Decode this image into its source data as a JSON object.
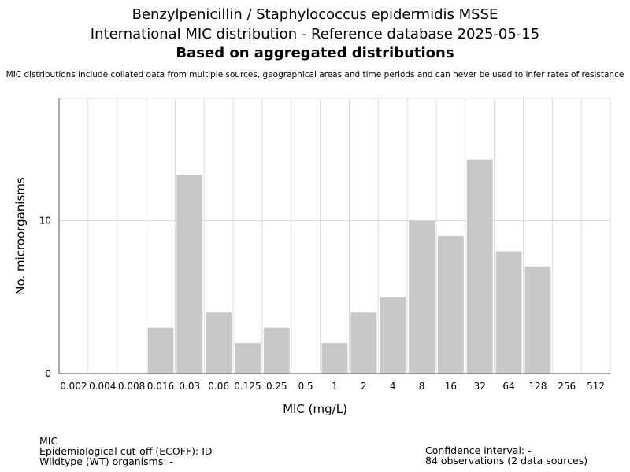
{
  "header": {
    "title_line1": "Benzylpenicillin / Staphylococcus epidermidis MSSE",
    "title_line2": "International MIC distribution - Reference database 2025-05-15",
    "title_line3": "Based on aggregated distributions",
    "subtitle": "MIC distributions include collated data from multiple sources, geographical areas and time periods and can never be used to infer rates of resistance"
  },
  "chart_data": {
    "type": "bar",
    "categories": [
      "0.002",
      "0.004",
      "0.008",
      "0.016",
      "0.03",
      "0.06",
      "0.125",
      "0.25",
      "0.5",
      "1",
      "2",
      "4",
      "8",
      "16",
      "32",
      "64",
      "128",
      "256",
      "512"
    ],
    "values": [
      0,
      0,
      0,
      3,
      13,
      4,
      2,
      3,
      0,
      2,
      4,
      5,
      10,
      9,
      14,
      8,
      7,
      0,
      0
    ],
    "xlabel": "MIC (mg/L)",
    "ylabel": "No. microorganisms",
    "ylim": [
      0,
      18
    ],
    "yticks": [
      0,
      10
    ],
    "grid": true,
    "bar_color": "#c8c8c8",
    "grid_color": "#dcdcdc"
  },
  "footer": {
    "left": [
      "MIC",
      "Epidemiological cut-off (ECOFF): ID",
      "Wildtype (WT) organisms:  -"
    ],
    "right": [
      "Confidence interval: -",
      "84 observations (2 data sources)"
    ]
  }
}
